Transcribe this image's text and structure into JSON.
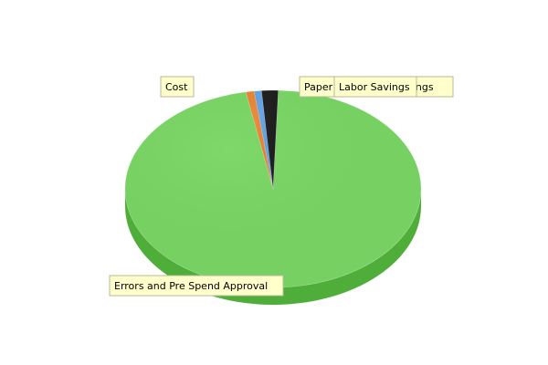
{
  "chart_data": {
    "type": "pie",
    "title": "",
    "style": "3d",
    "series": [
      {
        "name": "",
        "slices": [
          {
            "label": "Errors and Pre Spend Approval",
            "value": 96.5,
            "color": "#7fd86a",
            "side_color": "#4fae3a"
          },
          {
            "label": "Cost",
            "value": 0.9,
            "color": "#ec8a3c",
            "side_color": "#b8601c"
          },
          {
            "label": "Paper",
            "value": 0.8,
            "color": "#6aa7e6",
            "side_color": "#3d78b8"
          },
          {
            "label": "Labor Savings",
            "value": 1.8,
            "color": "#222222",
            "side_color": "#111111"
          }
        ]
      }
    ],
    "labels": [
      {
        "text": "Errors and Pre Spend Approval"
      },
      {
        "text": "Cost"
      },
      {
        "text": "Paper"
      },
      {
        "text": "Labor Savings"
      },
      {
        "text": "Labor Savings"
      }
    ],
    "legend": "none"
  },
  "colors": {
    "label_bg": "#ffffcc",
    "label_border": "#b9b99a",
    "connector": "#8a8a70"
  }
}
